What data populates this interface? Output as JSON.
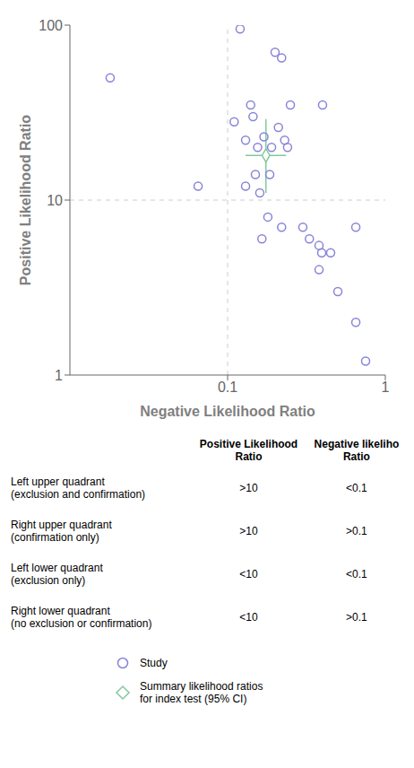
{
  "chart_data": {
    "type": "scatter",
    "x_label": "Negative Likelihood Ratio",
    "y_label": "Positive Likelihood Ratio",
    "log": true,
    "grid": false,
    "legend": "bottom",
    "xlim": [
      0.01,
      1.0
    ],
    "ylim": [
      1.0,
      100.0
    ],
    "xticks": [
      0.1,
      1
    ],
    "yticks": [
      1,
      10,
      100
    ],
    "reference_lines": {
      "x": [
        0.1
      ],
      "y": [
        10
      ],
      "line_style": "dashed"
    },
    "series": [
      {
        "name": "Study",
        "color": "#8884d8",
        "marker": "circle",
        "points": [
          [
            0.018,
            50
          ],
          [
            0.12,
            95
          ],
          [
            0.2,
            70
          ],
          [
            0.22,
            65
          ],
          [
            0.14,
            35
          ],
          [
            0.145,
            30
          ],
          [
            0.11,
            28
          ],
          [
            0.25,
            35
          ],
          [
            0.13,
            22
          ],
          [
            0.155,
            20
          ],
          [
            0.17,
            23
          ],
          [
            0.19,
            20
          ],
          [
            0.21,
            26
          ],
          [
            0.23,
            22
          ],
          [
            0.24,
            20
          ],
          [
            0.15,
            14
          ],
          [
            0.185,
            14
          ],
          [
            0.13,
            12
          ],
          [
            0.16,
            11
          ],
          [
            0.065,
            12
          ],
          [
            0.4,
            35
          ],
          [
            0.18,
            8
          ],
          [
            0.22,
            7
          ],
          [
            0.165,
            6
          ],
          [
            0.3,
            7
          ],
          [
            0.33,
            6
          ],
          [
            0.38,
            5.5
          ],
          [
            0.395,
            5
          ],
          [
            0.45,
            5
          ],
          [
            0.38,
            4
          ],
          [
            0.5,
            3
          ],
          [
            0.65,
            7
          ],
          [
            0.65,
            2
          ],
          [
            0.75,
            1.2
          ]
        ]
      },
      {
        "name": "Summary likelihood ratios\nfor index test (95% CI)",
        "color": "#82ca9d",
        "marker": "diamond",
        "points": [
          [
            0.175,
            18
          ]
        ],
        "x_error": [
          [
            0.13,
            0.235
          ]
        ],
        "y_error": [
          [
            11,
            29
          ]
        ]
      }
    ],
    "table": {
      "columns": [
        [
          "Positive Likelihood",
          "Ratio"
        ],
        [
          "Negative likeliho",
          "Ratio"
        ]
      ],
      "rows": [
        [
          "Left upper quadrant\n(exclusion and confirmation)",
          ">10",
          "<0.1"
        ],
        [
          "Right upper quadrant\n(confirmation only)",
          ">10",
          ">0.1"
        ],
        [
          "Left lower quadrant\n(exclusion only)",
          "<10",
          "<0.1"
        ],
        [
          "Right lower quadrant\n(no exclusion or confirmation)",
          "<10",
          ">0.1"
        ]
      ]
    }
  }
}
